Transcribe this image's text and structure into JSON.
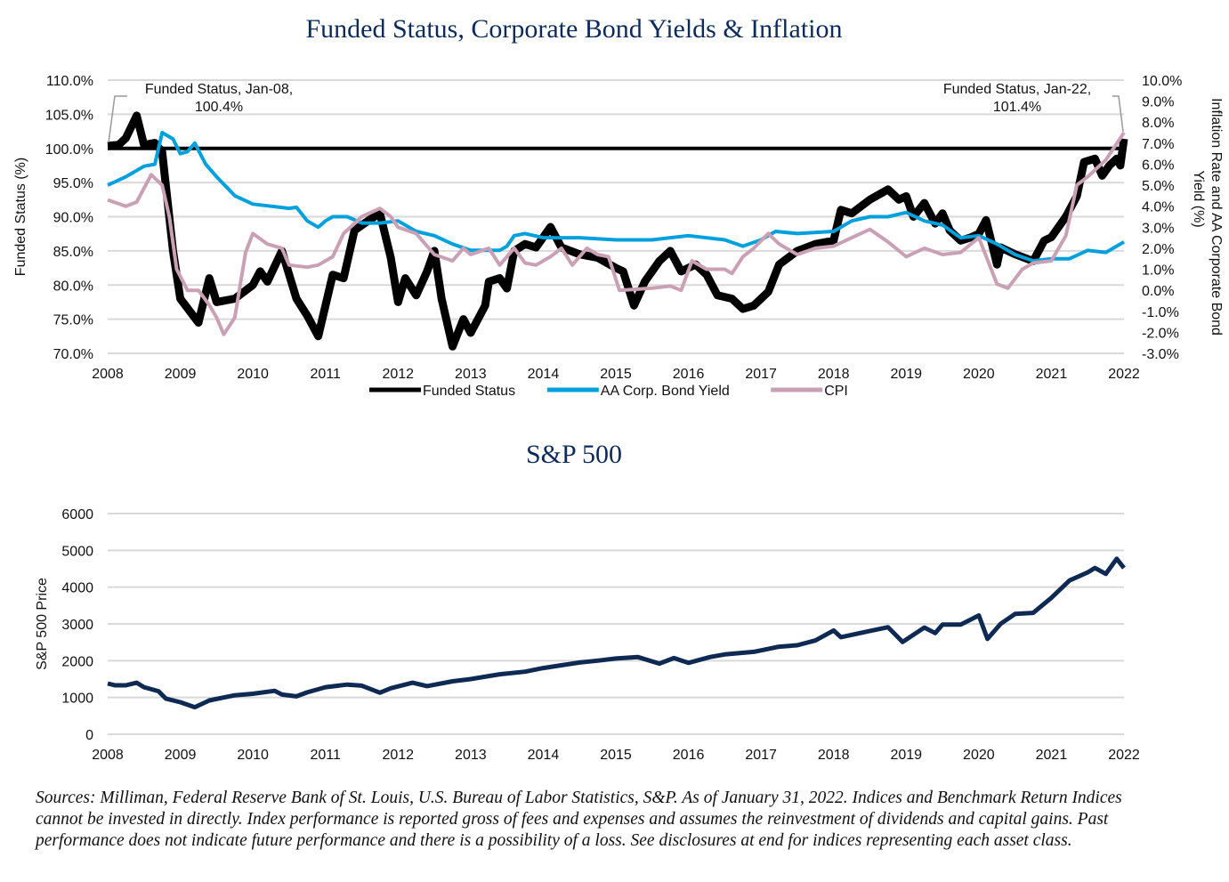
{
  "colors": {
    "funded": "#000000",
    "bond": "#00a0dc",
    "cpi": "#c9a0b4",
    "sp500": "#0e2a52",
    "grid": "#d9d9d9",
    "title": "#0d2b5a"
  },
  "chart_data": [
    {
      "type": "line",
      "title": "Funded Status, Corporate Bond Yields & Inflation",
      "ylabel": "Funded Status (%)",
      "y2label_lines": [
        "Inflation Rate and AA Corporate Bond",
        "Yield (%)"
      ],
      "xlim": [
        2008,
        2022
      ],
      "ylim": [
        70,
        110
      ],
      "y2lim": [
        -3,
        10
      ],
      "x_ticks": [
        "2008",
        "2009",
        "2010",
        "2011",
        "2012",
        "2013",
        "2014",
        "2015",
        "2016",
        "2017",
        "2018",
        "2019",
        "2020",
        "2021",
        "2022"
      ],
      "y_ticks": [
        "70.0%",
        "75.0%",
        "80.0%",
        "85.0%",
        "90.0%",
        "95.0%",
        "100.0%",
        "105.0%",
        "110.0%"
      ],
      "y2_ticks": [
        "-3.0%",
        "-2.0%",
        "-1.0%",
        "0.0%",
        "1.0%",
        "2.0%",
        "3.0%",
        "4.0%",
        "5.0%",
        "6.0%",
        "7.0%",
        "8.0%",
        "9.0%",
        "10.0%"
      ],
      "grid": true,
      "legend_placement": "bottom",
      "reference_line": 100,
      "annotations": [
        {
          "text1": "Funded Status, Jan-08,",
          "text2": "100.4%"
        },
        {
          "text1": "Funded Status, Jan-22,",
          "text2": "101.4%"
        }
      ],
      "series": [
        {
          "name": "Funded Status",
          "axis": "left",
          "color": "#000000",
          "x": [
            2008,
            2008.15,
            2008.25,
            2008.4,
            2008.5,
            2008.65,
            2008.75,
            2008.9,
            2009,
            2009.25,
            2009.4,
            2009.5,
            2009.75,
            2010,
            2010.1,
            2010.2,
            2010.4,
            2010.6,
            2010.75,
            2010.9,
            2011.1,
            2011.25,
            2011.4,
            2011.6,
            2011.75,
            2011.9,
            2012,
            2012.1,
            2012.25,
            2012.4,
            2012.5,
            2012.6,
            2012.75,
            2012.9,
            2013,
            2013.2,
            2013.25,
            2013.4,
            2013.5,
            2013.6,
            2013.75,
            2013.9,
            2014.1,
            2014.25,
            2014.5,
            2014.75,
            2015,
            2015.1,
            2015.25,
            2015.4,
            2015.6,
            2015.75,
            2015.9,
            2016.1,
            2016.25,
            2016.4,
            2016.6,
            2016.75,
            2016.9,
            2017.1,
            2017.25,
            2017.5,
            2017.75,
            2018,
            2018.1,
            2018.25,
            2018.5,
            2018.75,
            2018.9,
            2019,
            2019.1,
            2019.25,
            2019.4,
            2019.5,
            2019.6,
            2019.75,
            2019.9,
            2020,
            2020.1,
            2020.25,
            2020.3,
            2020.5,
            2020.75,
            2020.9,
            2021,
            2021.2,
            2021.35,
            2021.45,
            2021.6,
            2021.7,
            2021.8,
            2021.9,
            2021.95,
            2022
          ],
          "y": [
            100.4,
            100.5,
            101.5,
            104.8,
            100.5,
            100.8,
            99.5,
            85,
            78,
            74.5,
            81,
            77.5,
            78,
            80,
            82,
            80.5,
            85,
            78,
            75.5,
            72.5,
            81.5,
            81,
            88,
            89.5,
            90.5,
            84,
            77.5,
            81,
            78.5,
            82,
            85,
            78,
            71,
            75,
            73,
            77,
            80.5,
            81,
            79.5,
            85,
            86,
            85.5,
            88.5,
            85.5,
            84.5,
            84,
            82.5,
            82,
            77,
            80.5,
            83.5,
            85,
            82,
            83,
            81.5,
            78.5,
            78,
            76.5,
            77,
            79,
            83,
            85,
            86,
            86.5,
            91,
            90.5,
            92.5,
            94,
            92.5,
            93,
            90,
            92,
            89,
            90.5,
            88,
            86.5,
            87,
            87.5,
            89.5,
            83,
            85.5,
            84.5,
            83.5,
            86.5,
            87,
            90,
            93,
            98,
            98.5,
            96,
            97.5,
            98.5,
            97.5,
            101.4
          ]
        },
        {
          "name": "AA Corp. Bond Yield",
          "axis": "right",
          "color": "#00a0dc",
          "x": [
            2008,
            2008.25,
            2008.5,
            2008.65,
            2008.75,
            2008.9,
            2009,
            2009.1,
            2009.2,
            2009.35,
            2009.5,
            2009.75,
            2010,
            2010.25,
            2010.5,
            2010.6,
            2010.75,
            2010.9,
            2011,
            2011.1,
            2011.3,
            2011.5,
            2011.75,
            2012,
            2012.25,
            2012.5,
            2012.75,
            2013,
            2013.4,
            2013.5,
            2013.6,
            2013.75,
            2014,
            2014.5,
            2015,
            2015.5,
            2016,
            2016.5,
            2016.75,
            2017,
            2017.2,
            2017.5,
            2018,
            2018.25,
            2018.5,
            2018.75,
            2019,
            2019.25,
            2019.5,
            2019.75,
            2020,
            2020.25,
            2020.5,
            2020.75,
            2021,
            2021.25,
            2021.5,
            2021.75,
            2022
          ],
          "y": [
            5.0,
            5.4,
            5.9,
            6.0,
            7.5,
            7.2,
            6.5,
            6.6,
            7.0,
            6.0,
            5.4,
            4.5,
            4.1,
            4.0,
            3.9,
            3.95,
            3.3,
            3.0,
            3.3,
            3.5,
            3.5,
            3.2,
            3.2,
            3.3,
            2.8,
            2.6,
            2.2,
            1.9,
            1.9,
            2.1,
            2.6,
            2.7,
            2.5,
            2.5,
            2.4,
            2.4,
            2.6,
            2.4,
            2.1,
            2.4,
            2.8,
            2.7,
            2.8,
            3.3,
            3.5,
            3.5,
            3.7,
            3.3,
            3.1,
            2.5,
            2.6,
            2.2,
            1.7,
            1.4,
            1.5,
            1.5,
            1.9,
            1.8,
            2.3
          ]
        },
        {
          "name": "CPI",
          "axis": "right",
          "color": "#c9a0b4",
          "x": [
            2008,
            2008.25,
            2008.4,
            2008.6,
            2008.75,
            2008.85,
            2008.95,
            2009.1,
            2009.25,
            2009.4,
            2009.5,
            2009.6,
            2009.75,
            2009.9,
            2010,
            2010.2,
            2010.4,
            2010.5,
            2010.75,
            2010.9,
            2011.1,
            2011.25,
            2011.5,
            2011.75,
            2011.9,
            2012,
            2012.25,
            2012.5,
            2012.75,
            2012.9,
            2013,
            2013.25,
            2013.4,
            2013.6,
            2013.75,
            2013.9,
            2014.1,
            2014.25,
            2014.4,
            2014.6,
            2014.75,
            2014.9,
            2015.05,
            2015.5,
            2015.75,
            2015.9,
            2016.05,
            2016.25,
            2016.5,
            2016.6,
            2016.75,
            2016.9,
            2017.1,
            2017.25,
            2017.5,
            2017.75,
            2018,
            2018.25,
            2018.5,
            2018.75,
            2019,
            2019.25,
            2019.5,
            2019.75,
            2020,
            2020.25,
            2020.4,
            2020.6,
            2020.75,
            2021,
            2021.2,
            2021.35,
            2021.5,
            2021.75,
            2022
          ],
          "y": [
            4.3,
            4.0,
            4.2,
            5.5,
            5.0,
            3.5,
            1.0,
            0.0,
            0.0,
            -0.7,
            -1.3,
            -2.1,
            -1.3,
            1.8,
            2.7,
            2.2,
            2.0,
            1.2,
            1.1,
            1.2,
            1.6,
            2.7,
            3.5,
            3.9,
            3.5,
            3.0,
            2.7,
            1.7,
            1.4,
            2.0,
            1.7,
            2.0,
            1.2,
            2.0,
            1.3,
            1.2,
            1.6,
            2.0,
            1.2,
            2.0,
            1.7,
            1.6,
            0.0,
            0.1,
            0.2,
            0.0,
            1.4,
            1.0,
            1.0,
            0.8,
            1.6,
            2.0,
            2.7,
            2.2,
            1.7,
            2.0,
            2.1,
            2.5,
            2.9,
            2.3,
            1.6,
            2.0,
            1.7,
            1.8,
            2.5,
            0.3,
            0.1,
            1.0,
            1.3,
            1.4,
            2.6,
            5.0,
            5.4,
            6.2,
            7.5
          ]
        }
      ]
    },
    {
      "type": "line",
      "title": "S&P 500",
      "ylabel": "S&P 500 Price",
      "xlim": [
        2008,
        2022
      ],
      "ylim": [
        0,
        6000
      ],
      "x_ticks": [
        "2008",
        "2009",
        "2010",
        "2011",
        "2012",
        "2013",
        "2014",
        "2015",
        "2016",
        "2017",
        "2018",
        "2019",
        "2020",
        "2021",
        "2022"
      ],
      "y_ticks": [
        "0",
        "1000",
        "2000",
        "3000",
        "4000",
        "5000",
        "6000"
      ],
      "grid": true,
      "series": [
        {
          "color": "#0e2a52",
          "x": [
            2008,
            2008.1,
            2008.25,
            2008.4,
            2008.5,
            2008.7,
            2008.8,
            2009,
            2009.2,
            2009.4,
            2009.75,
            2010,
            2010.3,
            2010.4,
            2010.6,
            2010.75,
            2011,
            2011.3,
            2011.5,
            2011.75,
            2011.9,
            2012.2,
            2012.4,
            2012.75,
            2013,
            2013.4,
            2013.75,
            2014,
            2014.5,
            2014.75,
            2015,
            2015.3,
            2015.6,
            2015.8,
            2016,
            2016.3,
            2016.5,
            2016.9,
            2017.25,
            2017.5,
            2017.75,
            2018,
            2018.1,
            2018.5,
            2018.75,
            2018.95,
            2019.25,
            2019.4,
            2019.5,
            2019.75,
            2020,
            2020.12,
            2020.3,
            2020.5,
            2020.75,
            2021,
            2021.25,
            2021.5,
            2021.6,
            2021.75,
            2021.9,
            2022
          ],
          "y": [
            1380,
            1330,
            1330,
            1400,
            1280,
            1170,
            970,
            870,
            735,
            920,
            1060,
            1100,
            1180,
            1080,
            1030,
            1140,
            1280,
            1350,
            1320,
            1130,
            1250,
            1400,
            1310,
            1440,
            1500,
            1630,
            1700,
            1800,
            1950,
            2000,
            2060,
            2100,
            1920,
            2070,
            1940,
            2100,
            2170,
            2240,
            2380,
            2420,
            2550,
            2820,
            2640,
            2810,
            2910,
            2510,
            2900,
            2750,
            2980,
            2980,
            3230,
            2590,
            3000,
            3270,
            3300,
            3710,
            4180,
            4400,
            4520,
            4360,
            4770,
            4520
          ]
        }
      ]
    }
  ],
  "footnote": "Sources: Milliman, Federal Reserve Bank of St. Louis, U.S. Bureau of Labor Statistics, S&P. As of January 31, 2022. Indices and Benchmark Return Indices cannot be invested in directly. Index performance is reported gross of fees and expenses and assumes the reinvestment of dividends and capital gains. Past performance does not indicate future performance and there is a possibility of a loss. See disclosures at end for indices representing each asset class."
}
